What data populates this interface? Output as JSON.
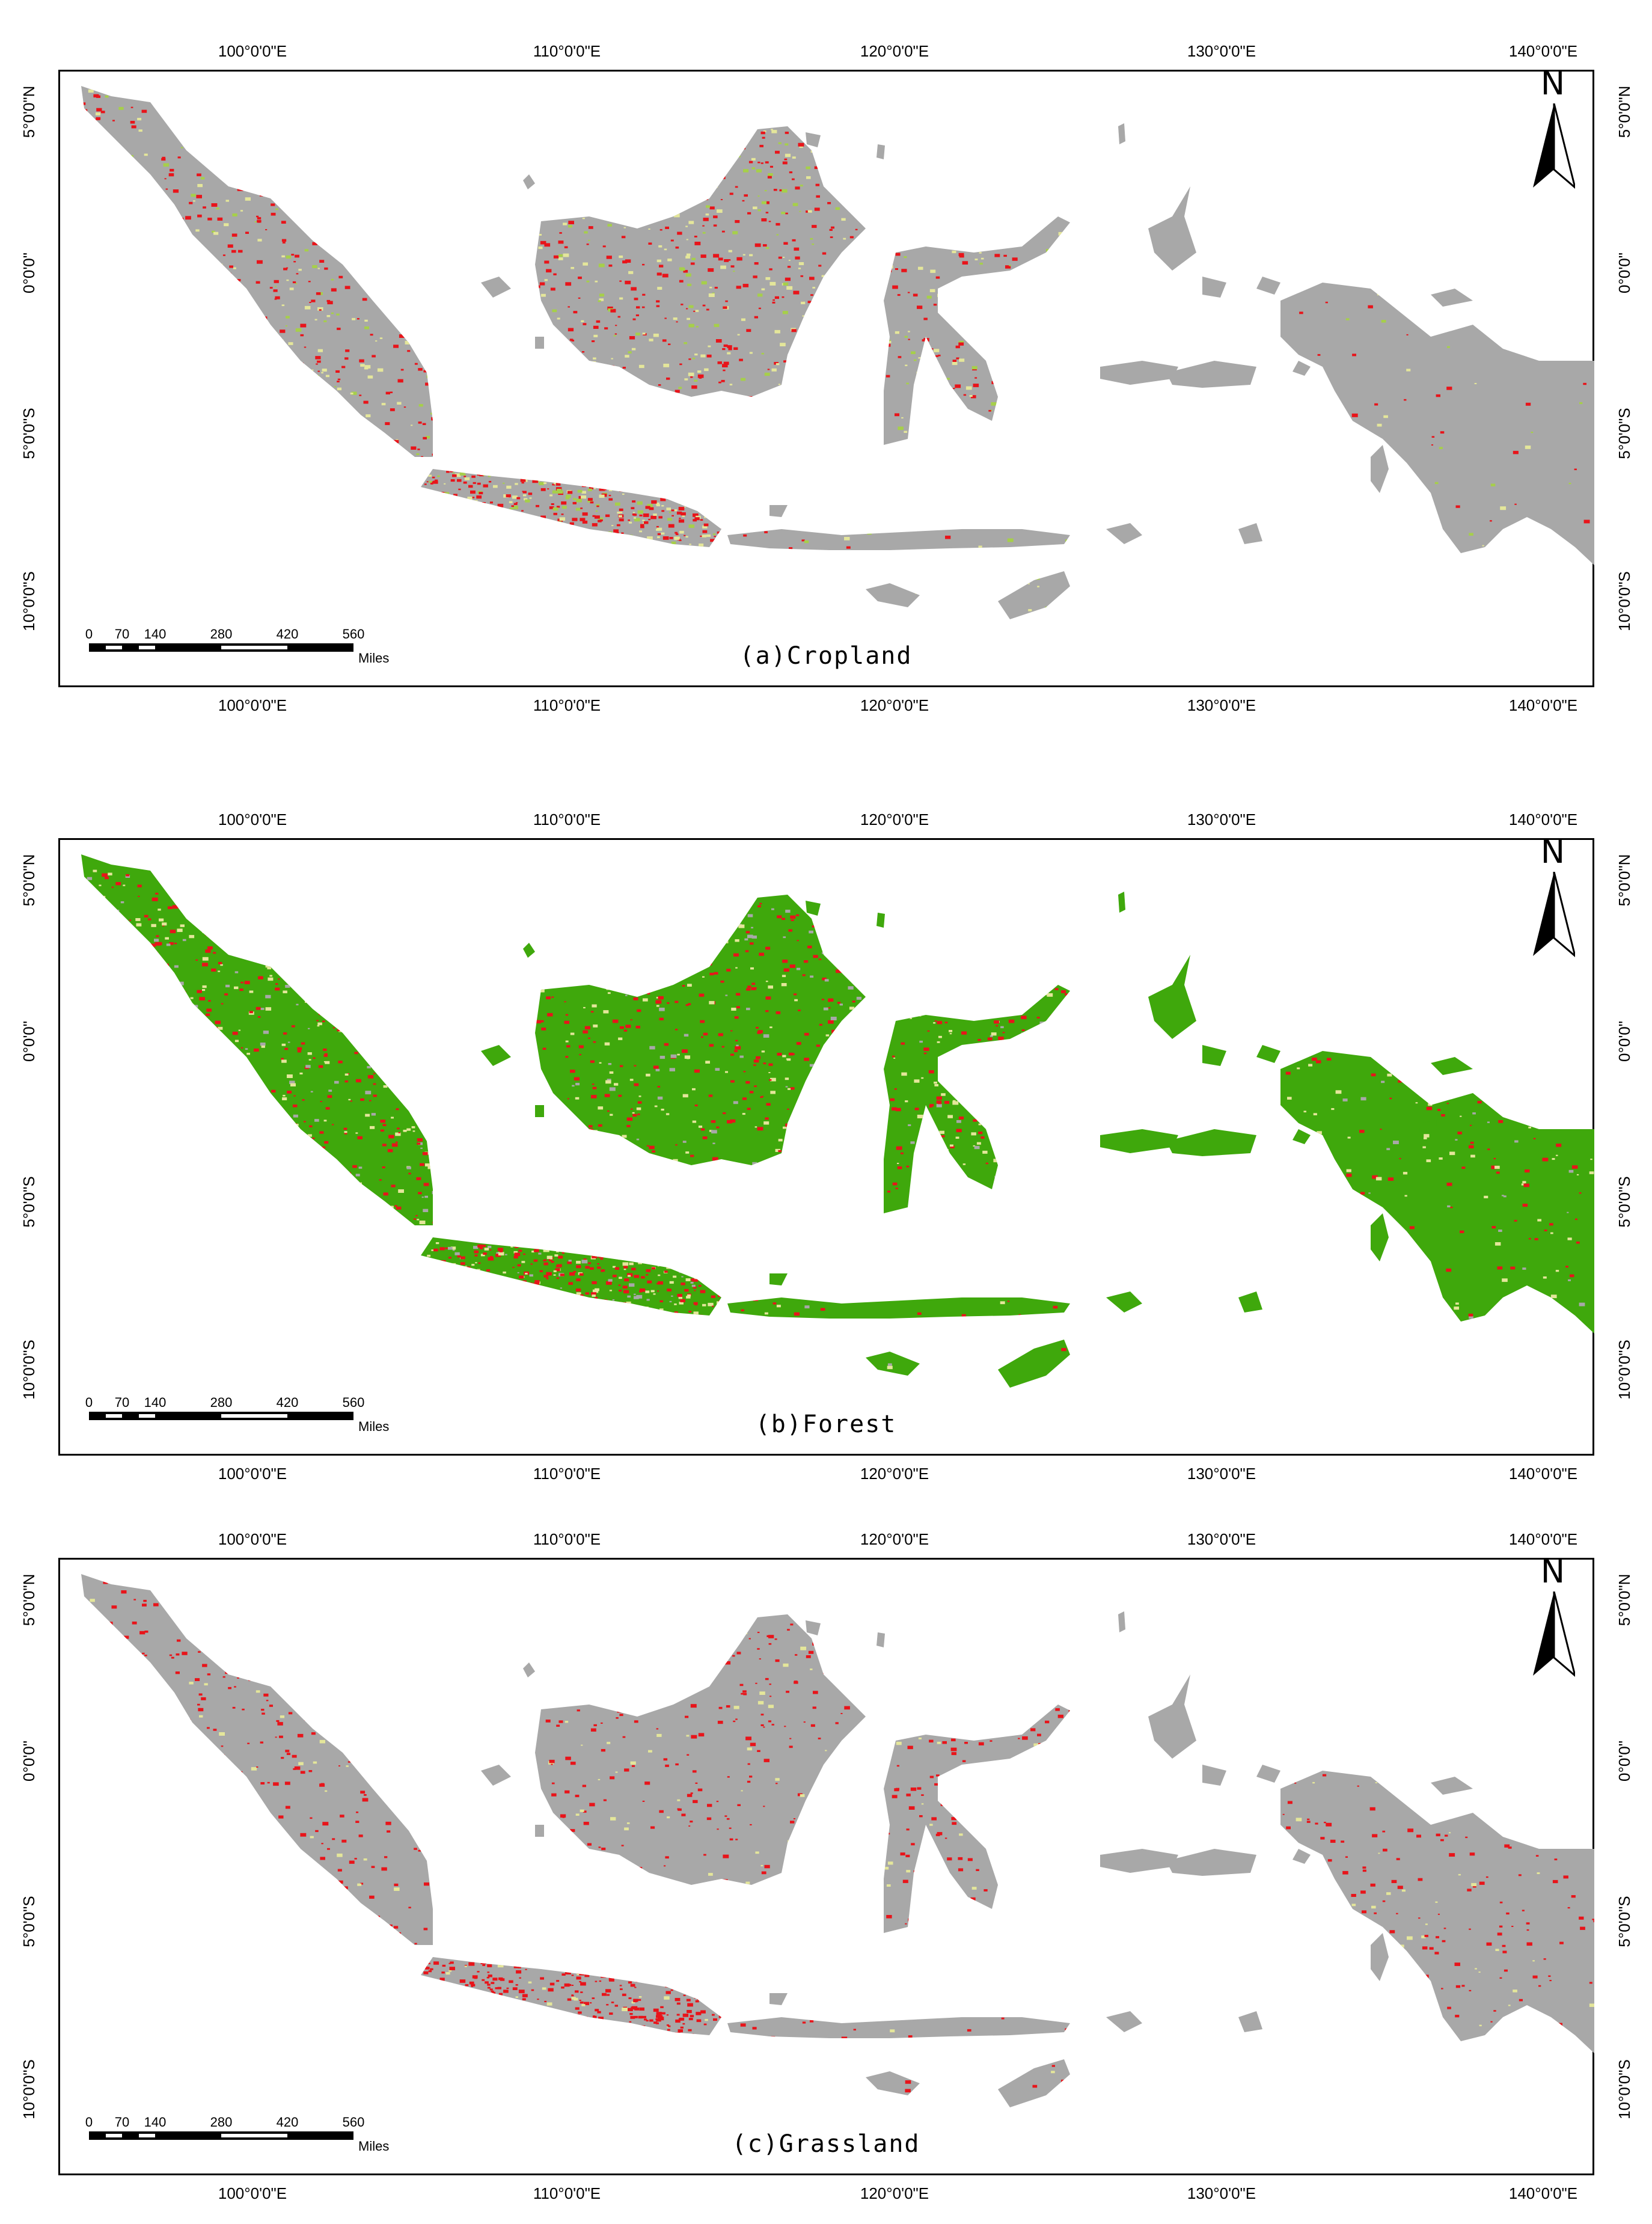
{
  "figure": {
    "lon_ticks": [
      "100°0'0\"E",
      "110°0'0\"E",
      "120°0'0\"E",
      "130°0'0\"E",
      "140°0'0\"E"
    ],
    "lat_ticks": [
      "5°0'0\"N",
      "0°0'0\"",
      "5°0'0\"S",
      "10°0'0\"S"
    ],
    "north_label": "N",
    "scale_labels": [
      "0",
      "70",
      "140",
      "280",
      "420",
      "560"
    ],
    "scale_unit": "Miles",
    "panels": [
      {
        "caption": "(a)Cropland",
        "theme": "cropland"
      },
      {
        "caption": "(b)Forest",
        "theme": "forest"
      },
      {
        "caption": "(c)Grassland",
        "theme": "grassland"
      }
    ]
  },
  "legend_colors": {
    "land_background": "#a8a8a8",
    "change_red": "#e8141a",
    "change_yellow": "#e4e69a",
    "forest_green": "#3fa80c",
    "cropland_green": "#a6cf4a"
  }
}
